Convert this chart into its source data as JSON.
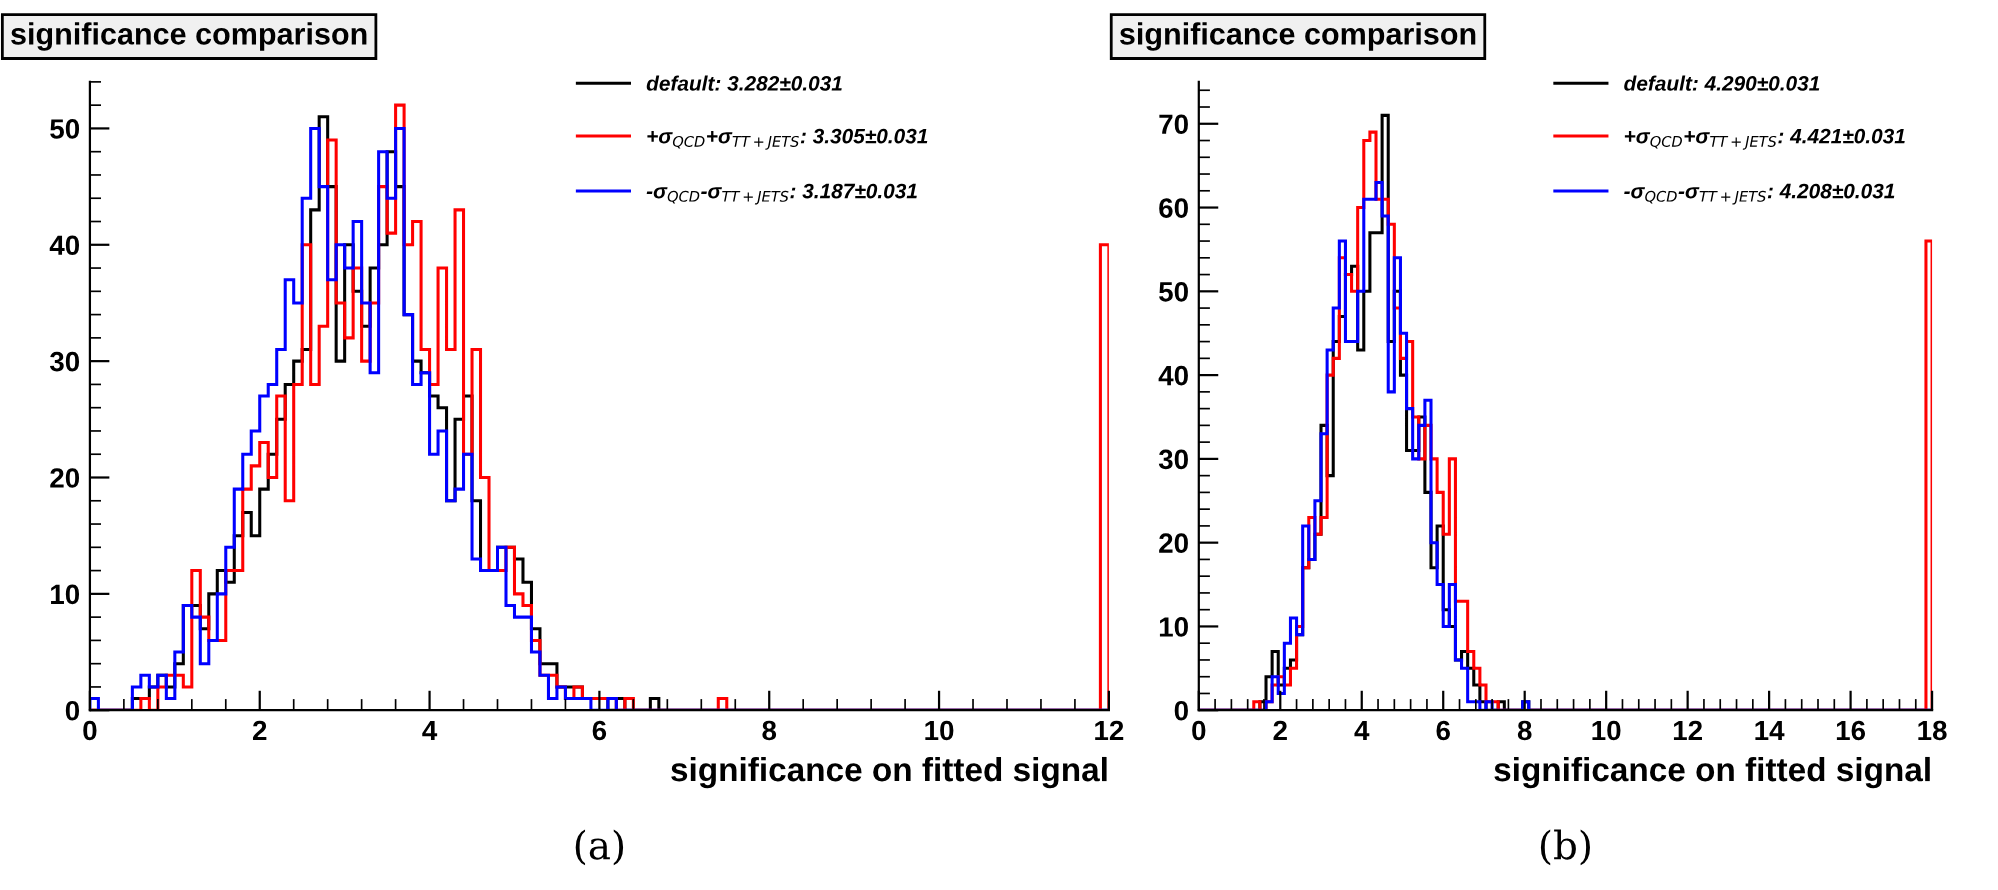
{
  "chart_data": [
    {
      "type": "histogram",
      "title": "significance comparison",
      "xlabel": "significance on fitted signal",
      "annotations": [
        "(a)"
      ],
      "xlim": [
        0,
        12
      ],
      "xticks": [
        0,
        2,
        4,
        6,
        8,
        10,
        12
      ],
      "ylim": [
        0,
        54
      ],
      "yticks": [
        0,
        10,
        20,
        30,
        40,
        50
      ],
      "legend": "top right",
      "grid": false,
      "bins": [
        0,
        0.1,
        0.2,
        0.3,
        0.4,
        0.5,
        0.6,
        0.7,
        0.8,
        0.9,
        1,
        1.1,
        1.2,
        1.3,
        1.4,
        1.5,
        1.6,
        1.7,
        1.8,
        1.9,
        2,
        2.1,
        2.2,
        2.3,
        2.4,
        2.5,
        2.6,
        2.7,
        2.8,
        2.9,
        3,
        3.1,
        3.2,
        3.3,
        3.4,
        3.5,
        3.6,
        3.7,
        3.8,
        3.9,
        4,
        4.1,
        4.2,
        4.3,
        4.4,
        4.5,
        4.6,
        4.7,
        4.8,
        4.9,
        5,
        5.1,
        5.2,
        5.3,
        5.4,
        5.5,
        5.6,
        5.7,
        5.8,
        5.9,
        6,
        6.1,
        6.2,
        6.3,
        6.4,
        6.5,
        6.6,
        6.7,
        6.8,
        6.9,
        7,
        7.1,
        7.2,
        7.3,
        7.4,
        7.5,
        7.6,
        7.7,
        7.8,
        7.9,
        8,
        8.1,
        8.2,
        8.3,
        8.4,
        8.5,
        8.6,
        8.7,
        8.8,
        8.9,
        9,
        9.1,
        9.2,
        9.3,
        9.4,
        9.5,
        9.6,
        9.7,
        9.8,
        9.9,
        10,
        10.1,
        10.2,
        10.3,
        10.4,
        10.5,
        10.6,
        10.7,
        10.8,
        10.9,
        11,
        11.1,
        11.2,
        11.3,
        11.4,
        11.5,
        11.6,
        11.7,
        11.8,
        11.9,
        12
      ],
      "series": [
        {
          "name": "default: 3.282±0.031",
          "color": "#000000",
          "values": [
            0,
            0,
            0,
            0,
            0,
            1,
            1,
            2,
            3,
            2,
            4,
            9,
            9,
            7,
            10,
            12,
            11,
            15,
            17,
            15,
            19,
            22,
            25,
            28,
            30,
            31,
            43,
            51,
            45,
            30,
            40,
            36,
            33,
            38,
            40,
            48,
            45,
            34,
            30,
            29,
            27,
            26,
            18,
            25,
            27,
            18,
            12,
            12,
            14,
            14,
            13,
            11,
            7,
            4,
            4,
            2,
            2,
            2,
            1,
            1,
            1,
            0,
            1,
            0,
            0,
            0,
            1,
            0,
            0,
            0,
            0,
            0,
            0,
            0,
            0,
            0,
            0,
            0,
            0,
            0,
            0,
            0,
            0,
            0,
            0,
            0,
            0,
            0,
            0,
            0,
            0,
            0,
            0,
            0,
            0,
            0,
            0,
            0,
            0,
            0,
            0,
            0,
            0,
            0,
            0,
            0,
            0,
            0,
            0,
            0,
            0,
            0,
            0,
            0,
            0,
            0,
            0,
            0,
            0,
            0
          ]
        },
        {
          "name": "+σ$_{QCD}$+σ$_{TT+JETS}$: 3.305±0.031",
          "color": "#ff0000",
          "values": [
            0,
            0,
            0,
            0,
            0,
            0,
            1,
            0,
            2,
            3,
            3,
            2,
            12,
            8,
            6,
            6,
            12,
            12,
            19,
            21,
            23,
            20,
            27,
            18,
            28,
            40,
            28,
            33,
            49,
            35,
            32,
            38,
            30,
            35,
            45,
            41,
            52,
            40,
            42,
            31,
            28,
            38,
            31,
            43,
            22,
            31,
            20,
            12,
            12,
            14,
            10,
            9,
            6,
            3,
            3,
            2,
            1,
            2,
            1,
            1,
            1,
            1,
            0,
            1,
            0,
            0,
            0,
            0,
            0,
            0,
            0,
            0,
            0,
            0,
            1,
            0,
            0,
            0,
            0,
            0,
            0,
            0,
            0,
            0,
            0,
            0,
            0,
            0,
            0,
            0,
            0,
            0,
            0,
            0,
            0,
            0,
            0,
            0,
            0,
            0,
            0,
            0,
            0,
            0,
            0,
            0,
            0,
            0,
            0,
            0,
            0,
            0,
            0,
            0,
            0,
            0,
            0,
            0,
            0,
            40
          ]
        },
        {
          "name": "-σ$_{QCD}$-σ$_{TT+JETS}$: 3.187±0.031",
          "color": "#0000ff",
          "values": [
            1,
            0,
            0,
            0,
            0,
            2,
            3,
            2,
            3,
            1,
            5,
            9,
            8,
            4,
            6,
            10,
            14,
            19,
            22,
            24,
            27,
            28,
            31,
            37,
            35,
            44,
            50,
            45,
            37,
            40,
            38,
            42,
            35,
            29,
            48,
            44,
            50,
            34,
            28,
            29,
            22,
            24,
            18,
            19,
            22,
            13,
            12,
            12,
            14,
            9,
            8,
            8,
            5,
            3,
            1,
            2,
            1,
            1,
            1,
            0,
            0,
            1,
            0,
            0,
            0,
            0,
            0,
            0,
            0,
            0,
            0,
            0,
            0,
            0,
            0,
            0,
            0,
            0,
            0,
            0,
            0,
            0,
            0,
            0,
            0,
            0,
            0,
            0,
            0,
            0,
            0,
            0,
            0,
            0,
            0,
            0,
            0,
            0,
            0,
            0,
            0,
            0,
            0,
            0,
            0,
            0,
            0,
            0,
            0,
            0,
            0,
            0,
            0,
            0,
            0,
            0,
            0,
            0,
            0,
            0
          ]
        }
      ]
    },
    {
      "type": "histogram",
      "title": "significance comparison",
      "xlabel": "significance on fitted signal",
      "annotations": [
        "(b)"
      ],
      "xlim": [
        0,
        18
      ],
      "xticks": [
        0,
        2,
        4,
        6,
        8,
        10,
        12,
        14,
        16,
        18
      ],
      "ylim": [
        0,
        75
      ],
      "yticks": [
        0,
        10,
        20,
        30,
        40,
        50,
        60,
        70
      ],
      "legend": "top right",
      "grid": false,
      "bins": [
        0,
        0.15,
        0.3,
        0.45,
        0.6,
        0.75,
        0.9,
        1.05,
        1.2,
        1.35,
        1.5,
        1.65,
        1.8,
        1.95,
        2.1,
        2.25,
        2.4,
        2.55,
        2.7,
        2.85,
        3,
        3.15,
        3.3,
        3.45,
        3.6,
        3.75,
        3.9,
        4.05,
        4.2,
        4.35,
        4.5,
        4.65,
        4.8,
        4.95,
        5.1,
        5.25,
        5.4,
        5.55,
        5.7,
        5.85,
        6,
        6.15,
        6.3,
        6.45,
        6.6,
        6.75,
        6.9,
        7.05,
        7.2,
        7.35,
        7.5,
        7.65,
        7.8,
        7.95,
        8.1,
        8.25,
        8.4,
        8.55,
        8.7,
        8.85,
        9,
        9.15,
        9.3,
        9.45,
        9.6,
        9.75,
        9.9,
        10.05,
        10.2,
        10.35,
        10.5,
        10.65,
        10.8,
        10.95,
        11.1,
        11.25,
        11.4,
        11.55,
        11.7,
        11.85,
        12,
        12.15,
        12.3,
        12.45,
        12.6,
        12.75,
        12.9,
        13.05,
        13.2,
        13.35,
        13.5,
        13.65,
        13.8,
        13.95,
        14.1,
        14.25,
        14.4,
        14.55,
        14.7,
        14.85,
        15,
        15.15,
        15.3,
        15.45,
        15.6,
        15.75,
        15.9,
        16.05,
        16.2,
        16.35,
        16.5,
        16.65,
        16.8,
        16.95,
        17.1,
        17.25,
        17.4,
        17.55,
        17.7,
        17.85,
        18
      ],
      "series": [
        {
          "name": "default: 4.290±0.031",
          "color": "#000000",
          "values": [
            0,
            0,
            0,
            0,
            0,
            0,
            0,
            0,
            0,
            0,
            1,
            4,
            7,
            3,
            5,
            6,
            9,
            17,
            18,
            21,
            34,
            28,
            44,
            47,
            52,
            53,
            43,
            50,
            57,
            57,
            71,
            44,
            50,
            40,
            31,
            31,
            35,
            26,
            17,
            22,
            12,
            10,
            6,
            7,
            5,
            3,
            1,
            0,
            0,
            1,
            0,
            0,
            0,
            1,
            0,
            0,
            0,
            0,
            0,
            0,
            0,
            0,
            0,
            0,
            0,
            0,
            0,
            0,
            0,
            0,
            0,
            0,
            0,
            0,
            0,
            0,
            0,
            0,
            0,
            0,
            0,
            0,
            0,
            0,
            0,
            0,
            0,
            0,
            0,
            0,
            0,
            0,
            0,
            0,
            0,
            0,
            0,
            0,
            0,
            0,
            0,
            0,
            0,
            0,
            0,
            0,
            0,
            0,
            0,
            0,
            0,
            0,
            0,
            0,
            0,
            0,
            0,
            0,
            0,
            0
          ]
        },
        {
          "name": "+σ$_{QCD}$+σ$_{TT+JETS}$: 4.421±0.031",
          "color": "#ff0000",
          "values": [
            0,
            0,
            0,
            0,
            0,
            0,
            0,
            0,
            0,
            1,
            0,
            1,
            3,
            4,
            3,
            5,
            10,
            17,
            23,
            21,
            23,
            40,
            42,
            54,
            52,
            50,
            60,
            68,
            69,
            61,
            61,
            58,
            48,
            42,
            44,
            35,
            30,
            34,
            30,
            26,
            21,
            30,
            13,
            13,
            7,
            5,
            3,
            1,
            1,
            0,
            0,
            0,
            0,
            0,
            0,
            0,
            0,
            0,
            0,
            0,
            0,
            0,
            0,
            0,
            0,
            0,
            0,
            0,
            0,
            0,
            0,
            0,
            0,
            0,
            0,
            0,
            0,
            0,
            0,
            0,
            0,
            0,
            0,
            0,
            0,
            0,
            0,
            0,
            0,
            0,
            0,
            0,
            0,
            0,
            0,
            0,
            0,
            0,
            0,
            0,
            0,
            0,
            0,
            0,
            0,
            0,
            0,
            0,
            0,
            0,
            0,
            0,
            0,
            0,
            0,
            0,
            0,
            0,
            0,
            56
          ]
        },
        {
          "name": "-σ$_{QCD}$-σ$_{TT+JETS}$: 4.208±0.031",
          "color": "#0000ff",
          "values": [
            0,
            0,
            0,
            0,
            0,
            0,
            0,
            0,
            0,
            0,
            0,
            1,
            4,
            2,
            8,
            11,
            9,
            22,
            18,
            25,
            33,
            43,
            48,
            56,
            44,
            44,
            50,
            61,
            61,
            63,
            59,
            38,
            54,
            45,
            36,
            30,
            34,
            37,
            20,
            15,
            10,
            15,
            6,
            5,
            1,
            1,
            0,
            1,
            0,
            0,
            0,
            0,
            0,
            1,
            0,
            0,
            0,
            0,
            0,
            0,
            0,
            0,
            0,
            0,
            0,
            0,
            0,
            0,
            0,
            0,
            0,
            0,
            0,
            0,
            0,
            0,
            0,
            0,
            0,
            0,
            0,
            0,
            0,
            0,
            0,
            0,
            0,
            0,
            0,
            0,
            0,
            0,
            0,
            0,
            0,
            0,
            0,
            0,
            0,
            0,
            0,
            0,
            0,
            0,
            0,
            0,
            0,
            0,
            0,
            0,
            0,
            0,
            0,
            0,
            0,
            0,
            0,
            0,
            0,
            0
          ]
        }
      ]
    }
  ]
}
